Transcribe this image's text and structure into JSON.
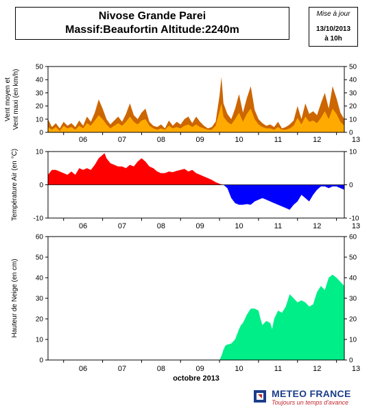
{
  "header": {
    "title_line1": "Nivose Grande Parei",
    "title_line2": "Massif:Beaufortin Altitude:2240m",
    "update_label": "Mise à jour",
    "update_date": "13/10/2013",
    "update_time": "à 10h"
  },
  "branding": {
    "logo_name": "METEO FRANCE",
    "logo_tagline": "Toujours un temps d'avance"
  },
  "colors": {
    "wind_max": "#cc6600",
    "wind_mean": "#ffaa00",
    "temp_positive": "#ff0000",
    "temp_negative": "#0000ff",
    "snow": "#00ee88"
  },
  "chart_data": [
    {
      "type": "area",
      "ylabel": "Vent moyen et Vent maxi (en km/h)",
      "ylim": [
        0,
        50
      ],
      "yticks": [
        0,
        10,
        20,
        30,
        40,
        50
      ],
      "xlim": [
        5.6,
        13.2
      ],
      "xticks": [
        6,
        7,
        8,
        9,
        10,
        11,
        12,
        13
      ],
      "xticklabels": [
        "06",
        "07",
        "08",
        "09",
        "10",
        "11",
        "12",
        "13"
      ],
      "series": [
        {
          "key": "wind_max",
          "x": [
            5.6,
            5.7,
            5.8,
            5.9,
            6.0,
            6.1,
            6.2,
            6.3,
            6.4,
            6.5,
            6.6,
            6.7,
            6.8,
            6.9,
            7.0,
            7.1,
            7.2,
            7.3,
            7.4,
            7.5,
            7.6,
            7.7,
            7.8,
            7.9,
            8.0,
            8.1,
            8.2,
            8.3,
            8.4,
            8.5,
            8.6,
            8.7,
            8.8,
            8.9,
            9.0,
            9.1,
            9.2,
            9.3,
            9.4,
            9.5,
            9.6,
            9.7,
            9.8,
            9.9,
            10.0,
            10.05,
            10.1,
            10.2,
            10.3,
            10.4,
            10.5,
            10.6,
            10.7,
            10.8,
            10.9,
            11.0,
            11.1,
            11.2,
            11.3,
            11.4,
            11.5,
            11.6,
            11.7,
            11.8,
            11.9,
            12.0,
            12.1,
            12.2,
            12.3,
            12.4,
            12.5,
            12.6,
            12.7,
            12.8,
            12.9,
            13.0,
            13.1,
            13.2
          ],
          "y": [
            10,
            4,
            7,
            3,
            8,
            5,
            7,
            4,
            9,
            5,
            12,
            8,
            15,
            25,
            18,
            10,
            6,
            9,
            12,
            8,
            14,
            22,
            13,
            10,
            15,
            18,
            8,
            5,
            4,
            6,
            3,
            9,
            5,
            8,
            6,
            10,
            12,
            7,
            12,
            8,
            5,
            3,
            4,
            8,
            28,
            42,
            22,
            14,
            10,
            18,
            29,
            15,
            26,
            35,
            17,
            10,
            7,
            5,
            6,
            4,
            8,
            3,
            4,
            6,
            9,
            20,
            10,
            22,
            14,
            16,
            13,
            22,
            30,
            18,
            35,
            26,
            15,
            10
          ]
        },
        {
          "key": "wind_mean",
          "x": [
            5.6,
            5.7,
            5.8,
            5.9,
            6.0,
            6.1,
            6.2,
            6.3,
            6.4,
            6.5,
            6.6,
            6.7,
            6.8,
            6.9,
            7.0,
            7.1,
            7.2,
            7.3,
            7.4,
            7.5,
            7.6,
            7.7,
            7.8,
            7.9,
            8.0,
            8.1,
            8.2,
            8.3,
            8.4,
            8.5,
            8.6,
            8.7,
            8.8,
            8.9,
            9.0,
            9.1,
            9.2,
            9.3,
            9.4,
            9.5,
            9.6,
            9.7,
            9.8,
            9.9,
            10.0,
            10.05,
            10.1,
            10.2,
            10.3,
            10.4,
            10.5,
            10.6,
            10.7,
            10.8,
            10.9,
            11.0,
            11.1,
            11.2,
            11.3,
            11.4,
            11.5,
            11.6,
            11.7,
            11.8,
            11.9,
            12.0,
            12.1,
            12.2,
            12.3,
            12.4,
            12.5,
            12.6,
            12.7,
            12.8,
            12.9,
            13.0,
            13.1,
            13.2
          ],
          "y": [
            4,
            2,
            4,
            1,
            5,
            3,
            4,
            2,
            5,
            3,
            7,
            5,
            9,
            13,
            10,
            6,
            3,
            5,
            7,
            5,
            8,
            12,
            8,
            6,
            9,
            10,
            5,
            3,
            2,
            3,
            2,
            5,
            3,
            4,
            3,
            5,
            6,
            4,
            6,
            4,
            3,
            2,
            2,
            5,
            16,
            22,
            12,
            8,
            6,
            10,
            15,
            8,
            14,
            18,
            10,
            6,
            4,
            3,
            3,
            2,
            4,
            2,
            2,
            3,
            5,
            11,
            6,
            12,
            8,
            9,
            7,
            11,
            16,
            10,
            18,
            14,
            8,
            5
          ]
        }
      ]
    },
    {
      "type": "area",
      "ylabel": "Température Air (en °C)",
      "ylim": [
        -10,
        10
      ],
      "yticks": [
        -10,
        0,
        10
      ],
      "xlim": [
        5.6,
        13.2
      ],
      "xticks": [
        6,
        7,
        8,
        9,
        10,
        11,
        12,
        13
      ],
      "xticklabels": [
        "06",
        "07",
        "08",
        "09",
        "10",
        "11",
        "12",
        "13"
      ],
      "series": [
        {
          "key": "temperature",
          "x": [
            5.6,
            5.7,
            5.8,
            5.9,
            6.0,
            6.1,
            6.2,
            6.3,
            6.4,
            6.5,
            6.6,
            6.7,
            6.8,
            6.9,
            7.0,
            7.05,
            7.1,
            7.2,
            7.3,
            7.4,
            7.5,
            7.6,
            7.7,
            7.8,
            7.9,
            8.0,
            8.1,
            8.2,
            8.3,
            8.4,
            8.5,
            8.6,
            8.7,
            8.8,
            8.9,
            9.0,
            9.1,
            9.2,
            9.3,
            9.4,
            9.5,
            9.6,
            9.7,
            9.8,
            9.9,
            10.0,
            10.1,
            10.2,
            10.3,
            10.4,
            10.5,
            10.6,
            10.7,
            10.8,
            10.9,
            11.0,
            11.1,
            11.2,
            11.3,
            11.4,
            11.5,
            11.6,
            11.7,
            11.8,
            11.9,
            12.0,
            12.1,
            12.2,
            12.3,
            12.4,
            12.5,
            12.6,
            12.7,
            12.8,
            12.9,
            13.0,
            13.1,
            13.2
          ],
          "y": [
            3,
            4.5,
            4.5,
            4,
            3.5,
            3,
            4,
            3,
            5,
            4.5,
            5,
            4.5,
            6,
            8,
            9,
            9.5,
            8,
            6.5,
            6,
            5.5,
            5.5,
            5,
            6,
            5.5,
            7,
            8,
            7,
            5.5,
            5,
            4,
            3.5,
            3.5,
            4,
            3.8,
            4.2,
            4.5,
            4.8,
            4,
            4.5,
            3.5,
            3,
            2.5,
            2,
            1.5,
            0.8,
            0.3,
            0,
            -1,
            -4,
            -5.5,
            -6,
            -6,
            -5.8,
            -6,
            -5,
            -4.5,
            -4,
            -4.5,
            -5,
            -5.5,
            -6,
            -6.5,
            -7,
            -7.5,
            -6,
            -5,
            -3,
            -4,
            -5,
            -3,
            -1.5,
            -0.5,
            -0.5,
            -1,
            -0.5,
            -0.5,
            -1,
            -1.5
          ]
        }
      ]
    },
    {
      "type": "area",
      "xlabel": "octobre 2013",
      "ylabel": "Hauteur de Neige (en cm)",
      "ylim": [
        0,
        60
      ],
      "yticks": [
        0,
        10,
        20,
        30,
        40,
        50,
        60
      ],
      "xlim": [
        5.6,
        13.2
      ],
      "xticks": [
        6,
        7,
        8,
        9,
        10,
        11,
        12,
        13
      ],
      "xticklabels": [
        "06",
        "07",
        "08",
        "09",
        "10",
        "11",
        "12",
        "13"
      ],
      "series": [
        {
          "key": "snow_depth",
          "x": [
            5.6,
            6.0,
            7.0,
            8.0,
            9.0,
            10.0,
            10.05,
            10.1,
            10.15,
            10.2,
            10.3,
            10.4,
            10.5,
            10.55,
            10.6,
            10.7,
            10.8,
            10.9,
            11.0,
            11.05,
            11.1,
            11.2,
            11.3,
            11.35,
            11.4,
            11.5,
            11.6,
            11.7,
            11.8,
            11.9,
            12.0,
            12.1,
            12.2,
            12.3,
            12.4,
            12.5,
            12.6,
            12.7,
            12.8,
            12.9,
            13.0,
            13.1,
            13.2
          ],
          "y": [
            0,
            0,
            0,
            0,
            0,
            0,
            2,
            5,
            7,
            7.5,
            8,
            10,
            15,
            17,
            18,
            22,
            25,
            25,
            24,
            20,
            17,
            19,
            18,
            15,
            20,
            24,
            23,
            26,
            32,
            30,
            28,
            29,
            28,
            26,
            27,
            33,
            36,
            34,
            40,
            41.5,
            40,
            38,
            36
          ]
        }
      ]
    }
  ]
}
